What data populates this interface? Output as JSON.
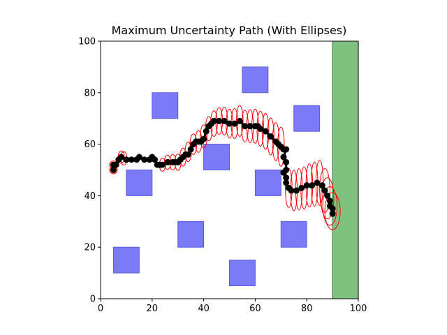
{
  "chart_data": {
    "type": "scatter",
    "title": "Maximum Uncertainty Path (With Ellipses)",
    "xlabel": "",
    "ylabel": "",
    "xlim": [
      0,
      100
    ],
    "ylim": [
      0,
      100
    ],
    "x_ticks": [
      0,
      20,
      40,
      60,
      80,
      100
    ],
    "y_ticks": [
      0,
      20,
      40,
      60,
      80,
      100
    ],
    "grid": false,
    "colors": {
      "obstacle": "#7b7bf7",
      "obstacle_edge": "#5a5ae0",
      "goal": "#80c080",
      "goal_edge": "#2e7d2e",
      "path": "#000000",
      "ellipse": "#ff0000"
    },
    "goal_region": {
      "x_range": [
        90,
        100
      ],
      "y_range": [
        0,
        100
      ]
    },
    "obstacles": [
      {
        "x": [
          20,
          30
        ],
        "y": [
          70,
          80
        ]
      },
      {
        "x": [
          55,
          65
        ],
        "y": [
          80,
          90
        ]
      },
      {
        "x": [
          75,
          85
        ],
        "y": [
          65,
          75
        ]
      },
      {
        "x": [
          40,
          50
        ],
        "y": [
          50,
          60
        ]
      },
      {
        "x": [
          10,
          20
        ],
        "y": [
          40,
          50
        ]
      },
      {
        "x": [
          60,
          70
        ],
        "y": [
          40,
          50
        ]
      },
      {
        "x": [
          30,
          40
        ],
        "y": [
          20,
          30
        ]
      },
      {
        "x": [
          70,
          80
        ],
        "y": [
          20,
          30
        ]
      },
      {
        "x": [
          5,
          15
        ],
        "y": [
          10,
          20
        ]
      },
      {
        "x": [
          50,
          60
        ],
        "y": [
          5,
          15
        ]
      }
    ],
    "path": [
      [
        5,
        50
      ],
      [
        5,
        52
      ],
      [
        6,
        52
      ],
      [
        7,
        54
      ],
      [
        8,
        55
      ],
      [
        10,
        54
      ],
      [
        12,
        54
      ],
      [
        14,
        54
      ],
      [
        15,
        55
      ],
      [
        17,
        54
      ],
      [
        19,
        54
      ],
      [
        20,
        55
      ],
      [
        21,
        54
      ],
      [
        22,
        52
      ],
      [
        23,
        52
      ],
      [
        24,
        52
      ],
      [
        26,
        53
      ],
      [
        28,
        53
      ],
      [
        29,
        53
      ],
      [
        30,
        53
      ],
      [
        31,
        54
      ],
      [
        32,
        55
      ],
      [
        33,
        56
      ],
      [
        34,
        56
      ],
      [
        35,
        58
      ],
      [
        36,
        60
      ],
      [
        37,
        61
      ],
      [
        38,
        61
      ],
      [
        39,
        61
      ],
      [
        40,
        62
      ],
      [
        41,
        65
      ],
      [
        42,
        67
      ],
      [
        43,
        68
      ],
      [
        44,
        69
      ],
      [
        46,
        69
      ],
      [
        48,
        69
      ],
      [
        50,
        68
      ],
      [
        52,
        68
      ],
      [
        54,
        69
      ],
      [
        56,
        67
      ],
      [
        58,
        67
      ],
      [
        60,
        67
      ],
      [
        61,
        67
      ],
      [
        62,
        66
      ],
      [
        64,
        65
      ],
      [
        66,
        63
      ],
      [
        68,
        61
      ],
      [
        69,
        60
      ],
      [
        70,
        59
      ],
      [
        71,
        58
      ],
      [
        72,
        58
      ],
      [
        71,
        55
      ],
      [
        72,
        53
      ],
      [
        72,
        50
      ],
      [
        71,
        49
      ],
      [
        72,
        47
      ],
      [
        72,
        45
      ],
      [
        73,
        43
      ],
      [
        74,
        42
      ],
      [
        76,
        42
      ],
      [
        78,
        43
      ],
      [
        80,
        44
      ],
      [
        82,
        44
      ],
      [
        84,
        45
      ],
      [
        86,
        44
      ],
      [
        87,
        42
      ],
      [
        88,
        40
      ],
      [
        89,
        38
      ],
      [
        89,
        36
      ],
      [
        90,
        35
      ],
      [
        90,
        33
      ]
    ],
    "ellipses": [
      {
        "cx": 5,
        "cy": 50,
        "rx": 1.5,
        "ry": 1.5
      },
      {
        "cx": 5,
        "cy": 52,
        "rx": 1.5,
        "ry": 1.5
      },
      {
        "cx": 8,
        "cy": 55,
        "rx": 1.2,
        "ry": 2.4
      },
      {
        "cx": 9,
        "cy": 54.5,
        "rx": 1.2,
        "ry": 2.6
      },
      {
        "cx": 24,
        "cy": 52,
        "rx": 1.2,
        "ry": 2.5
      },
      {
        "cx": 26,
        "cy": 53,
        "rx": 1.2,
        "ry": 2.8
      },
      {
        "cx": 28,
        "cy": 53,
        "rx": 1.2,
        "ry": 3.0
      },
      {
        "cx": 30,
        "cy": 53,
        "rx": 1.2,
        "ry": 3.2
      },
      {
        "cx": 32,
        "cy": 55,
        "rx": 1.2,
        "ry": 3.5
      },
      {
        "cx": 34,
        "cy": 57,
        "rx": 1.2,
        "ry": 3.8
      },
      {
        "cx": 36,
        "cy": 60,
        "rx": 1.3,
        "ry": 4.0
      },
      {
        "cx": 38,
        "cy": 61,
        "rx": 1.3,
        "ry": 4.2
      },
      {
        "cx": 40,
        "cy": 63,
        "rx": 1.3,
        "ry": 4.5
      },
      {
        "cx": 42,
        "cy": 66,
        "rx": 1.3,
        "ry": 4.7
      },
      {
        "cx": 44,
        "cy": 68,
        "rx": 1.3,
        "ry": 5.0
      },
      {
        "cx": 46,
        "cy": 69,
        "rx": 1.3,
        "ry": 5.2
      },
      {
        "cx": 48,
        "cy": 69,
        "rx": 1.3,
        "ry": 5.4
      },
      {
        "cx": 50,
        "cy": 68,
        "rx": 1.3,
        "ry": 5.6
      },
      {
        "cx": 52,
        "cy": 68,
        "rx": 1.3,
        "ry": 5.8
      },
      {
        "cx": 54,
        "cy": 69,
        "rx": 1.3,
        "ry": 6.0
      },
      {
        "cx": 56,
        "cy": 67,
        "rx": 1.3,
        "ry": 6.2
      },
      {
        "cx": 58,
        "cy": 67,
        "rx": 1.3,
        "ry": 6.4
      },
      {
        "cx": 60,
        "cy": 67,
        "rx": 1.3,
        "ry": 6.6
      },
      {
        "cx": 62,
        "cy": 66,
        "rx": 1.3,
        "ry": 6.8
      },
      {
        "cx": 64,
        "cy": 65,
        "rx": 1.3,
        "ry": 7.0
      },
      {
        "cx": 66,
        "cy": 63,
        "rx": 1.3,
        "ry": 7.2
      },
      {
        "cx": 68,
        "cy": 61,
        "rx": 1.3,
        "ry": 7.4
      },
      {
        "cx": 70,
        "cy": 59,
        "rx": 1.3,
        "ry": 7.6
      },
      {
        "cx": 73,
        "cy": 43,
        "rx": 1.3,
        "ry": 7.6
      },
      {
        "cx": 75,
        "cy": 42,
        "rx": 1.3,
        "ry": 7.8
      },
      {
        "cx": 77,
        "cy": 42.5,
        "rx": 1.3,
        "ry": 8.0
      },
      {
        "cx": 79,
        "cy": 43,
        "rx": 1.3,
        "ry": 8.2
      },
      {
        "cx": 81,
        "cy": 44,
        "rx": 1.3,
        "ry": 8.4
      },
      {
        "cx": 83,
        "cy": 44.5,
        "rx": 1.3,
        "ry": 8.6
      },
      {
        "cx": 85,
        "cy": 45,
        "rx": 1.4,
        "ry": 8.8
      },
      {
        "cx": 87,
        "cy": 42,
        "rx": 2.0,
        "ry": 8.5
      },
      {
        "cx": 88,
        "cy": 39,
        "rx": 2.5,
        "ry": 8.0
      },
      {
        "cx": 89,
        "cy": 36,
        "rx": 2.8,
        "ry": 7.5
      },
      {
        "cx": 90,
        "cy": 34,
        "rx": 3.0,
        "ry": 7.2
      }
    ]
  }
}
